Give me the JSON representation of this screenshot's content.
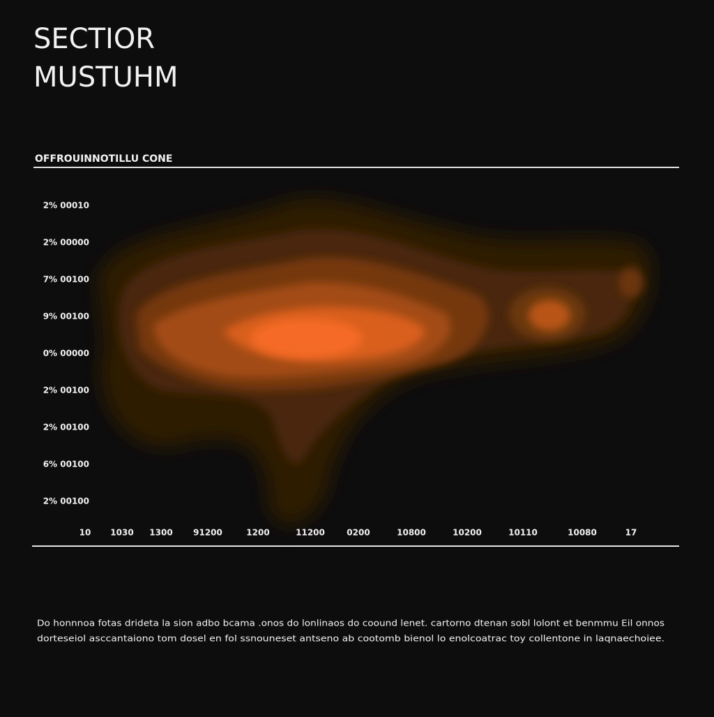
{
  "chart_data": {
    "type": "density",
    "title_lines": [
      "SECTIOR",
      "MUSTUHM"
    ],
    "subtitle": "OFFROUINNOTILLU CONE",
    "y_labels": [
      "2% 00010",
      "2% 00000",
      "7% 00100",
      "9% 00100",
      "0% 00000",
      "2% 00100",
      "2% 00100",
      "6% 00100",
      "2% 00100"
    ],
    "x_labels": [
      "10",
      "1030",
      "1300",
      "91200",
      "1200",
      "11200",
      "0200",
      "10800",
      "10200",
      "10110",
      "10080",
      "17"
    ],
    "caption_lines": [
      "Do honnnoa fotas drideta la sion adbo bcama .onos do lonlinaos do coound lenet. cartorno dtenan sobl lolont et benmmu Eil onnos",
      "dorteseiol asccantaiono tom dosel en fol ssnouneset antseno ab cootomb bienol lo enolcoatrac toy collentone in laqnaechoiee."
    ]
  }
}
